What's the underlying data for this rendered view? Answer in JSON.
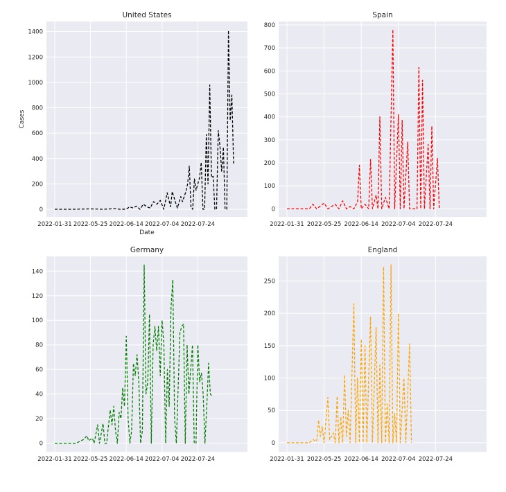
{
  "chart_data": [
    {
      "type": "line",
      "title": "United States",
      "xlabel": "Date",
      "ylabel": "Cases",
      "color": "#000000",
      "x_ticks": [
        "2022-01-31",
        "2022-05-25",
        "2022-06-14",
        "2022-07-04",
        "2022-07-24"
      ],
      "y_ticks": [
        0,
        200,
        400,
        600,
        800,
        1000,
        1200,
        1400
      ],
      "ylim": [
        -60,
        1480
      ],
      "x_count": 100,
      "points": [
        [
          0,
          0
        ],
        [
          10,
          0
        ],
        [
          20,
          3
        ],
        [
          24,
          2
        ],
        [
          28,
          0
        ],
        [
          36,
          5
        ],
        [
          38,
          0
        ],
        [
          42,
          1
        ],
        [
          44,
          20
        ],
        [
          46,
          10
        ],
        [
          48,
          25
        ],
        [
          50,
          0
        ],
        [
          52,
          40
        ],
        [
          54,
          20
        ],
        [
          56,
          10
        ],
        [
          58,
          60
        ],
        [
          60,
          40
        ],
        [
          62,
          70
        ],
        [
          64,
          0
        ],
        [
          66,
          130
        ],
        [
          68,
          20
        ],
        [
          69,
          140
        ],
        [
          71,
          50
        ],
        [
          72,
          10
        ],
        [
          74,
          100
        ],
        [
          75,
          60
        ],
        [
          77,
          140
        ],
        [
          78,
          200
        ],
        [
          79,
          340
        ],
        [
          80,
          10
        ],
        [
          81,
          0
        ],
        [
          82,
          240
        ],
        [
          83,
          150
        ],
        [
          84,
          200
        ],
        [
          85,
          250
        ],
        [
          86,
          370
        ],
        [
          87,
          0
        ],
        [
          88,
          0
        ],
        [
          89,
          590
        ],
        [
          90,
          200
        ],
        [
          91,
          980
        ],
        [
          92,
          250
        ],
        [
          93,
          260
        ],
        [
          94,
          0
        ],
        [
          95,
          0
        ],
        [
          96,
          620
        ],
        [
          97,
          500
        ],
        [
          98,
          300
        ],
        [
          99,
          490
        ],
        [
          100,
          0
        ],
        [
          101,
          0
        ],
        [
          102,
          1410
        ],
        [
          103,
          700
        ],
        [
          104,
          900
        ],
        [
          105,
          360
        ]
      ]
    },
    {
      "type": "line",
      "title": "Spain",
      "xlabel": "",
      "ylabel": "",
      "color": "#ff0000",
      "x_ticks": [
        "2022-01-31",
        "2022-05-25",
        "2022-06-14",
        "2022-07-04",
        "2022-07-24"
      ],
      "y_ticks": [
        0,
        100,
        200,
        300,
        400,
        500,
        600,
        700,
        800
      ],
      "ylim": [
        -35,
        815
      ],
      "x_count": 100,
      "points": [
        [
          0,
          0
        ],
        [
          12,
          0
        ],
        [
          14,
          20
        ],
        [
          16,
          0
        ],
        [
          20,
          25
        ],
        [
          22,
          0
        ],
        [
          24,
          10
        ],
        [
          26,
          20
        ],
        [
          28,
          0
        ],
        [
          30,
          35
        ],
        [
          32,
          0
        ],
        [
          34,
          10
        ],
        [
          36,
          0
        ],
        [
          38,
          30
        ],
        [
          39,
          190
        ],
        [
          40,
          0
        ],
        [
          42,
          20
        ],
        [
          44,
          0
        ],
        [
          45,
          215
        ],
        [
          46,
          0
        ],
        [
          48,
          60
        ],
        [
          49,
          0
        ],
        [
          50,
          400
        ],
        [
          51,
          0
        ],
        [
          53,
          50
        ],
        [
          55,
          0
        ],
        [
          57,
          780
        ],
        [
          58,
          0
        ],
        [
          60,
          410
        ],
        [
          61,
          0
        ],
        [
          62,
          385
        ],
        [
          63,
          0
        ],
        [
          65,
          290
        ],
        [
          66,
          0
        ],
        [
          70,
          0
        ],
        [
          71,
          615
        ],
        [
          72,
          0
        ],
        [
          73,
          560
        ],
        [
          74,
          0
        ],
        [
          76,
          280
        ],
        [
          77,
          0
        ],
        [
          78,
          360
        ],
        [
          79,
          0
        ],
        [
          81,
          220
        ],
        [
          82,
          0
        ]
      ]
    },
    {
      "type": "line",
      "title": "Germany",
      "xlabel": "",
      "ylabel": "",
      "color": "#008000",
      "x_ticks": [
        "2022-01-31",
        "2022-05-25",
        "2022-06-14",
        "2022-07-04",
        "2022-07-24"
      ],
      "y_ticks": [
        0,
        20,
        40,
        60,
        80,
        100,
        120,
        140
      ],
      "ylim": [
        -7,
        152
      ],
      "x_count": 100,
      "points": [
        [
          0,
          0
        ],
        [
          12,
          0
        ],
        [
          16,
          3
        ],
        [
          18,
          6
        ],
        [
          19,
          2
        ],
        [
          21,
          4
        ],
        [
          22,
          0
        ],
        [
          24,
          15
        ],
        [
          25,
          0
        ],
        [
          27,
          16
        ],
        [
          28,
          0
        ],
        [
          29,
          0
        ],
        [
          31,
          27
        ],
        [
          32,
          15
        ],
        [
          33,
          30
        ],
        [
          34,
          10
        ],
        [
          35,
          0
        ],
        [
          36,
          25
        ],
        [
          37,
          20
        ],
        [
          38,
          45
        ],
        [
          39,
          30
        ],
        [
          40,
          87
        ],
        [
          41,
          20
        ],
        [
          42,
          0
        ],
        [
          43,
          10
        ],
        [
          44,
          65
        ],
        [
          45,
          55
        ],
        [
          46,
          72
        ],
        [
          47,
          50
        ],
        [
          48,
          0
        ],
        [
          49,
          10
        ],
        [
          50,
          145
        ],
        [
          51,
          40
        ],
        [
          52,
          50
        ],
        [
          53,
          105
        ],
        [
          54,
          0
        ],
        [
          55,
          80
        ],
        [
          56,
          95
        ],
        [
          57,
          75
        ],
        [
          58,
          95
        ],
        [
          59,
          55
        ],
        [
          60,
          100
        ],
        [
          61,
          80
        ],
        [
          62,
          0
        ],
        [
          63,
          60
        ],
        [
          64,
          30
        ],
        [
          65,
          110
        ],
        [
          66,
          133
        ],
        [
          67,
          20
        ],
        [
          68,
          0
        ],
        [
          70,
          90
        ],
        [
          71,
          95
        ],
        [
          72,
          97
        ],
        [
          73,
          0
        ],
        [
          74,
          80
        ],
        [
          75,
          40
        ],
        [
          76,
          60
        ],
        [
          77,
          80
        ],
        [
          78,
          0
        ],
        [
          79,
          0
        ],
        [
          80,
          80
        ],
        [
          81,
          50
        ],
        [
          82,
          57
        ],
        [
          83,
          40
        ],
        [
          84,
          0
        ],
        [
          85,
          30
        ],
        [
          86,
          65
        ],
        [
          87,
          40
        ],
        [
          88,
          38
        ]
      ]
    },
    {
      "type": "line",
      "title": "England",
      "xlabel": "",
      "ylabel": "",
      "color": "#ffa500",
      "x_ticks": [
        "2022-01-31",
        "2022-05-25",
        "2022-06-14",
        "2022-07-04",
        "2022-07-24"
      ],
      "y_ticks": [
        0,
        50,
        100,
        150,
        200,
        250
      ],
      "ylim": [
        -14,
        288
      ],
      "x_count": 100,
      "points": [
        [
          0,
          0
        ],
        [
          12,
          0
        ],
        [
          14,
          5
        ],
        [
          16,
          2
        ],
        [
          17,
          35
        ],
        [
          18,
          10
        ],
        [
          19,
          25
        ],
        [
          20,
          0
        ],
        [
          22,
          70
        ],
        [
          23,
          5
        ],
        [
          25,
          15
        ],
        [
          26,
          0
        ],
        [
          27,
          72
        ],
        [
          28,
          0
        ],
        [
          29,
          40
        ],
        [
          30,
          0
        ],
        [
          31,
          105
        ],
        [
          32,
          10
        ],
        [
          33,
          50
        ],
        [
          34,
          0
        ],
        [
          36,
          215
        ],
        [
          37,
          0
        ],
        [
          38,
          100
        ],
        [
          39,
          0
        ],
        [
          40,
          160
        ],
        [
          41,
          0
        ],
        [
          42,
          150
        ],
        [
          43,
          0
        ],
        [
          45,
          195
        ],
        [
          46,
          0
        ],
        [
          48,
          178
        ],
        [
          49,
          0
        ],
        [
          50,
          120
        ],
        [
          51,
          0
        ],
        [
          52,
          272
        ],
        [
          53,
          0
        ],
        [
          54,
          60
        ],
        [
          55,
          0
        ],
        [
          56,
          275
        ],
        [
          57,
          0
        ],
        [
          58,
          45
        ],
        [
          59,
          0
        ],
        [
          60,
          200
        ],
        [
          61,
          0
        ],
        [
          63,
          100
        ],
        [
          64,
          0
        ],
        [
          66,
          153
        ],
        [
          67,
          0
        ]
      ]
    }
  ]
}
